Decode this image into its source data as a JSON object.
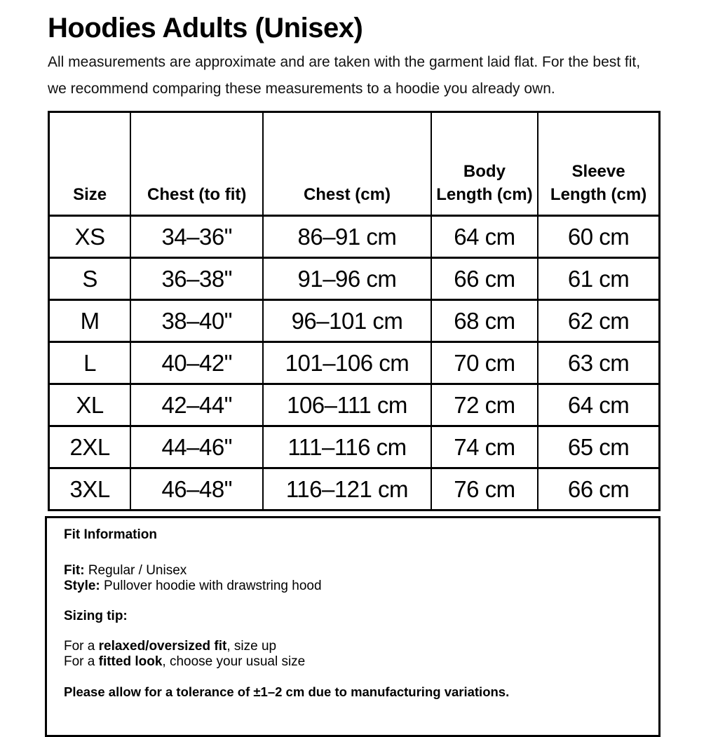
{
  "header": {
    "title": "Hoodies Adults (Unisex)",
    "subtitle": "All measurements are approximate and are taken with the garment laid flat. For the best fit, we recommend comparing these measurements to a hoodie you already own."
  },
  "size_chart": {
    "columns": [
      "Size",
      "Chest (to fit)",
      "Chest (cm)",
      "Body\nLength (cm)",
      "Sleeve\nLength (cm)"
    ],
    "rows": [
      [
        "XS",
        "34–36\"",
        "86–91 cm",
        "64 cm",
        "60 cm"
      ],
      [
        "S",
        "36–38\"",
        "91–96 cm",
        "66 cm",
        "61 cm"
      ],
      [
        "M",
        "38–40\"",
        "96–101 cm",
        "68 cm",
        "62 cm"
      ],
      [
        "L",
        "40–42\"",
        "101–106 cm",
        "70 cm",
        "63 cm"
      ],
      [
        "XL",
        "42–44\"",
        "106–111 cm",
        "72 cm",
        "64 cm"
      ],
      [
        "2XL",
        "44–46\"",
        "111–116 cm",
        "74 cm",
        "65 cm"
      ],
      [
        "3XL",
        "46–48\"",
        "116–121 cm",
        "76 cm",
        "66 cm"
      ]
    ]
  },
  "fit_info": {
    "heading": "Fit Information",
    "fit_label": "Fit:",
    "fit_value": "Regular / Unisex",
    "style_label": "Style:",
    "style_value": "Pullover hoodie with drawstring hood",
    "sizing_tip_label": "Sizing tip:",
    "tips": [
      {
        "prefix": "For a ",
        "bold": "relaxed/oversized fit",
        "suffix": ", size up"
      },
      {
        "prefix": "For a ",
        "bold": "fitted look",
        "suffix": ", choose your usual size"
      }
    ],
    "tolerance_note": "Please allow for a tolerance of ±1–2 cm due to manufacturing variations."
  },
  "colors": {
    "text": "#000000",
    "border": "#000000",
    "background": "#ffffff"
  }
}
